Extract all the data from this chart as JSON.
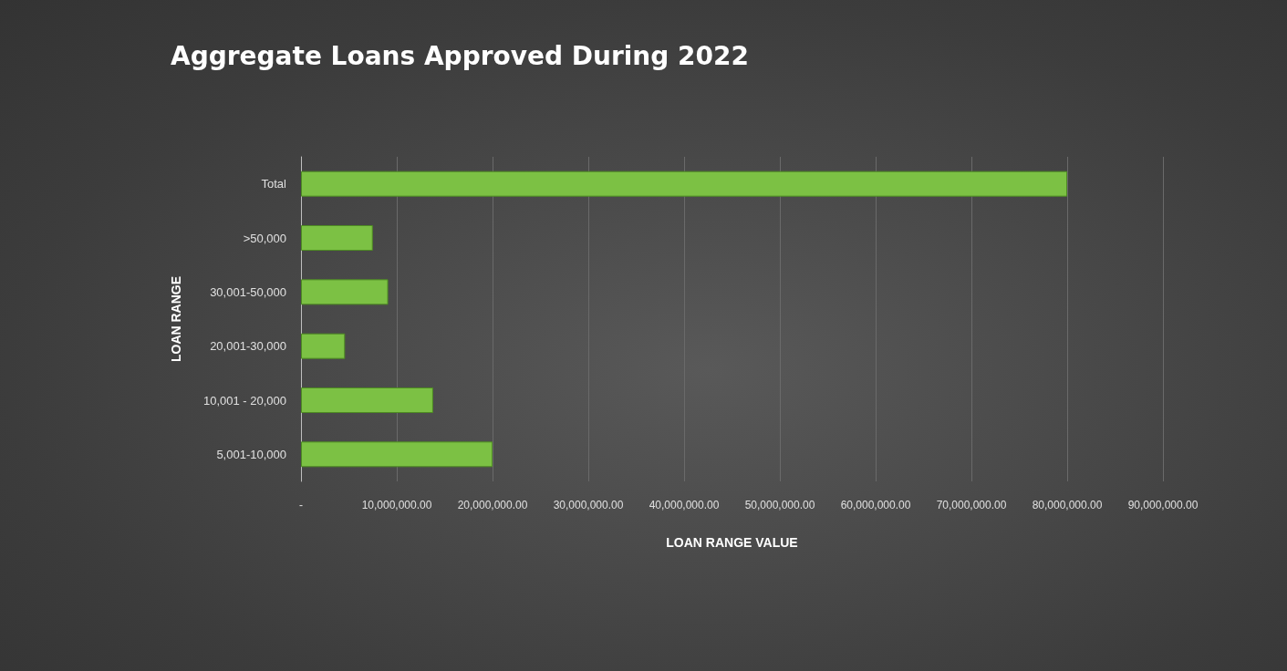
{
  "chart_data": {
    "type": "bar",
    "orientation": "horizontal",
    "title": "Aggregate Loans Approved During 2022",
    "xlabel": "LOAN RANGE VALUE",
    "ylabel": "LOAN RANGE",
    "categories": [
      "Total",
      ">50,000",
      "30,001-50,000",
      "20,001-30,000",
      "10,001 - 20,000",
      "5,001-10,000"
    ],
    "values": [
      80000000,
      7500000,
      9100000,
      4600000,
      13800000,
      20000000
    ],
    "color": "#7cc144",
    "xlim": [
      0,
      90000000
    ],
    "xticks": [
      {
        "value": 0,
        "label": "-"
      },
      {
        "value": 10000000,
        "label": "10,000,000.00"
      },
      {
        "value": 20000000,
        "label": "20,000,000.00"
      },
      {
        "value": 30000000,
        "label": "30,000,000.00"
      },
      {
        "value": 40000000,
        "label": "40,000,000.00"
      },
      {
        "value": 50000000,
        "label": "50,000,000.00"
      },
      {
        "value": 60000000,
        "label": "60,000,000.00"
      },
      {
        "value": 70000000,
        "label": "70,000,000.00"
      },
      {
        "value": 80000000,
        "label": "80,000,000.00"
      },
      {
        "value": 90000000,
        "label": "90,000,000.00"
      }
    ],
    "grid": "x"
  }
}
